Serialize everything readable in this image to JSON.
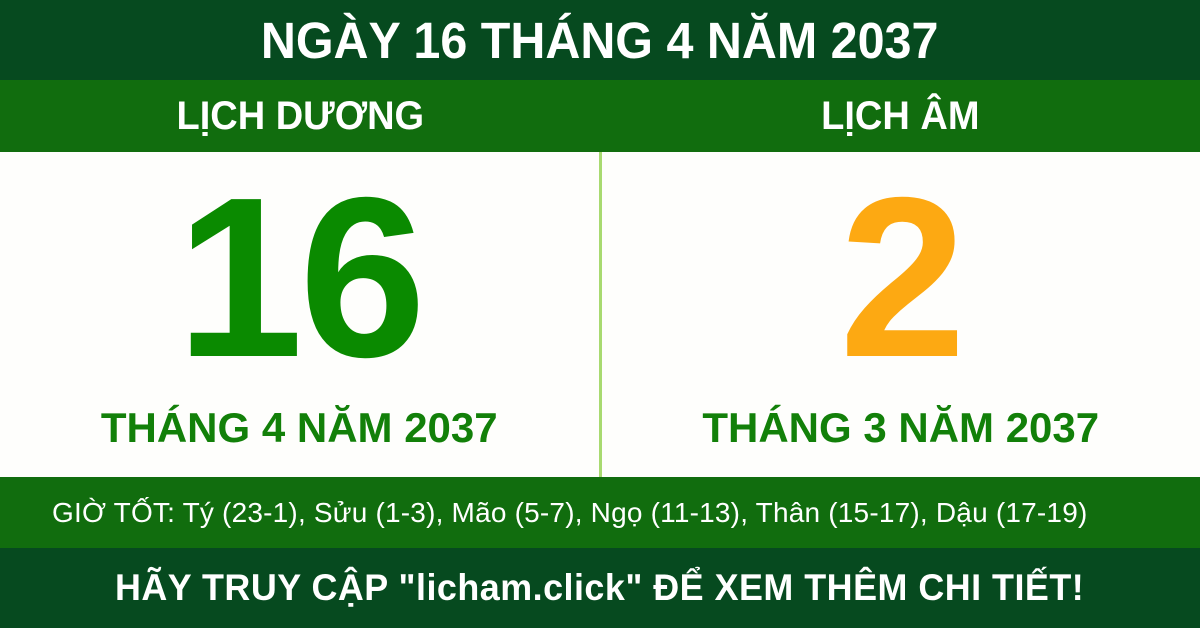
{
  "header": {
    "title": "NGÀY 16 THÁNG 4 NĂM 2037"
  },
  "panels": {
    "solar": {
      "label": "LỊCH DƯƠNG",
      "day": "16",
      "month_year": "THÁNG 4 NĂM 2037"
    },
    "lunar": {
      "label": "LỊCH ÂM",
      "day": "2",
      "month_year": "THÁNG 3 NĂM 2037"
    }
  },
  "good_hours": {
    "text": "GIỜ TỐT: Tý (23-1), Sửu (1-3), Mão (5-7), Ngọ (11-13), Thân (15-17), Dậu (17-19)"
  },
  "footer": {
    "text": "HÃY TRUY CẬP \"licham.click\" ĐỂ XEM THÊM CHI TIẾT!"
  },
  "colors": {
    "dark_green": "#064a1f",
    "green": "#116d0e",
    "solar_day": "#0a8a00",
    "lunar_day": "#fda912",
    "month_text": "#128009",
    "divider": "#a8da70",
    "text_white": "#ffffff"
  }
}
